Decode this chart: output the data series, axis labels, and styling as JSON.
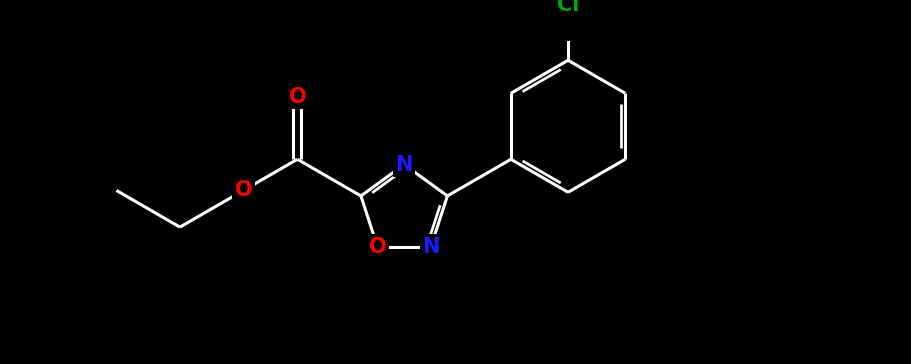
{
  "background_color": "#000000",
  "bond_color": "#ffffff",
  "N_color": "#1a1aff",
  "O_color": "#ff0000",
  "Cl_color": "#00aa00",
  "bond_width": 2.2,
  "figsize": [
    9.11,
    3.64
  ],
  "dpi": 100,
  "xlim": [
    0,
    11
  ],
  "ylim": [
    0,
    4.4
  ]
}
